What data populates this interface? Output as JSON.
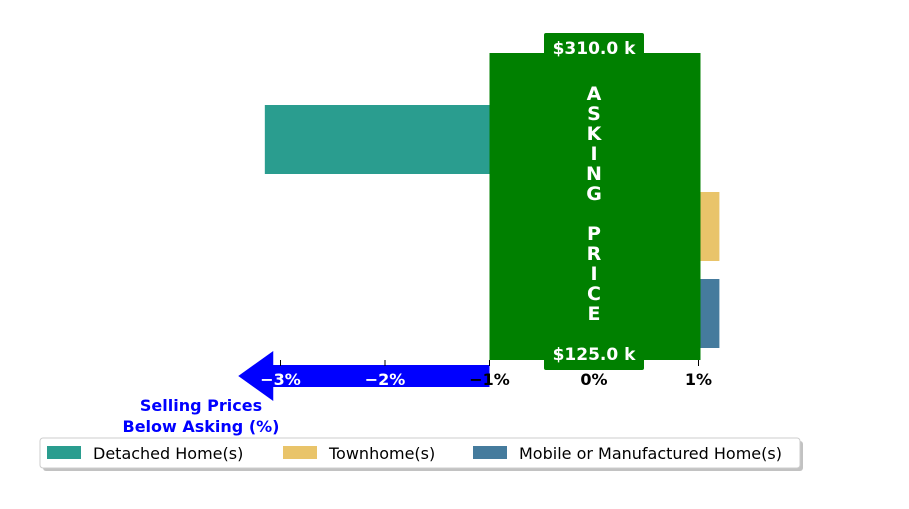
{
  "chart_data": {
    "type": "bar",
    "orientation": "horizontal",
    "title": "",
    "xlabel": "",
    "ylabel": "",
    "xlim": [
      -4.0,
      2.0
    ],
    "x_ticks": [
      {
        "value": -3,
        "label": "−3%"
      },
      {
        "value": -2,
        "label": "−2%"
      },
      {
        "value": -1,
        "label": "−1%"
      },
      {
        "value": 0,
        "label": "0%"
      },
      {
        "value": 1,
        "label": "1%"
      }
    ],
    "series": [
      {
        "name": "Detached Home(s)",
        "value": -3.15,
        "color": "#2a9d8f"
      },
      {
        "name": "Townhome(s)",
        "value": 1.2,
        "color": "#e9c46a"
      },
      {
        "name": "Mobile or Manufactured Home(s)",
        "value": 1.2,
        "color": "#457b9d"
      }
    ],
    "asking_price_band": {
      "x_range": [
        -1,
        1
      ],
      "color": "#008000",
      "label": "ASKING PRICE",
      "top_value": "$310.0 k",
      "bottom_value": "$125.0 k"
    },
    "annotation": {
      "text_line1": "Selling Prices",
      "text_line2": "Below Asking (%)",
      "arrow_from": -1,
      "arrow_to": -3.5,
      "color": "#0000ff"
    },
    "legend": {
      "position": "bottom",
      "columns": 3
    },
    "grid": false
  }
}
